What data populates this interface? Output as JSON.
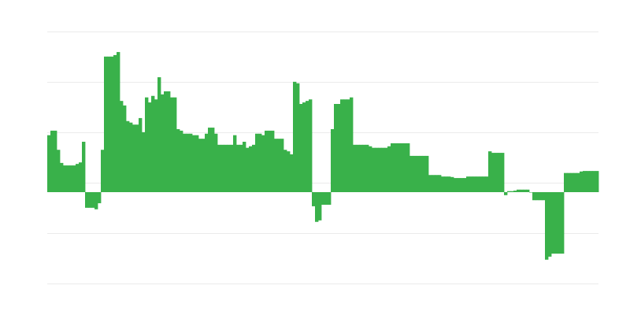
{
  "chart_data": {
    "type": "bar",
    "title": "",
    "xlabel": "",
    "ylabel": "",
    "ylim": [
      -1.8125,
      3.1875
    ],
    "grid": true,
    "gridline_count": 6,
    "bar_color": "#39b14a",
    "grid_color": "#ebebeb",
    "values": [
      1.13,
      1.22,
      1.22,
      0.84,
      0.58,
      0.53,
      0.53,
      0.53,
      0.53,
      0.56,
      0.59,
      1.0,
      -0.31,
      -0.31,
      -0.31,
      -0.34,
      -0.22,
      0.84,
      2.69,
      2.69,
      2.69,
      2.72,
      2.78,
      1.81,
      1.72,
      1.41,
      1.38,
      1.34,
      1.34,
      1.47,
      1.19,
      1.88,
      1.78,
      1.91,
      1.84,
      2.28,
      1.94,
      2.0,
      2.0,
      1.88,
      1.88,
      1.25,
      1.22,
      1.16,
      1.16,
      1.16,
      1.13,
      1.13,
      1.06,
      1.06,
      1.16,
      1.28,
      1.28,
      1.16,
      0.94,
      0.94,
      0.94,
      0.94,
      0.94,
      1.13,
      0.94,
      0.94,
      1.0,
      0.88,
      0.91,
      0.94,
      1.16,
      1.16,
      1.13,
      1.22,
      1.22,
      1.22,
      1.06,
      1.06,
      1.06,
      0.84,
      0.81,
      0.75,
      2.19,
      2.16,
      1.75,
      1.78,
      1.81,
      1.84,
      -0.28,
      -0.59,
      -0.56,
      -0.25,
      -0.25,
      -0.25,
      1.25,
      1.75,
      1.75,
      1.84,
      1.84,
      1.84,
      1.88,
      0.94,
      0.94,
      0.94,
      0.94,
      0.94,
      0.91,
      0.88,
      0.88,
      0.88,
      0.88,
      0.88,
      0.91,
      0.97,
      0.97,
      0.97,
      0.97,
      0.97,
      0.97,
      0.72,
      0.72,
      0.72,
      0.72,
      0.72,
      0.72,
      0.34,
      0.34,
      0.34,
      0.34,
      0.31,
      0.31,
      0.31,
      0.3,
      0.28,
      0.28,
      0.28,
      0.28,
      0.31,
      0.31,
      0.31,
      0.31,
      0.31,
      0.31,
      0.31,
      0.81,
      0.78,
      0.78,
      0.78,
      0.78,
      -0.06,
      0.02,
      0.02,
      0.03,
      0.05,
      0.05,
      0.05,
      0.05,
      0,
      -0.16,
      -0.16,
      -0.16,
      -0.16,
      -1.34,
      -1.28,
      -1.22,
      -1.22,
      -1.22,
      -1.22,
      0.38,
      0.38,
      0.38,
      0.38,
      0.38,
      0.41,
      0.42,
      0.42,
      0.42,
      0.42,
      0.42
    ]
  }
}
